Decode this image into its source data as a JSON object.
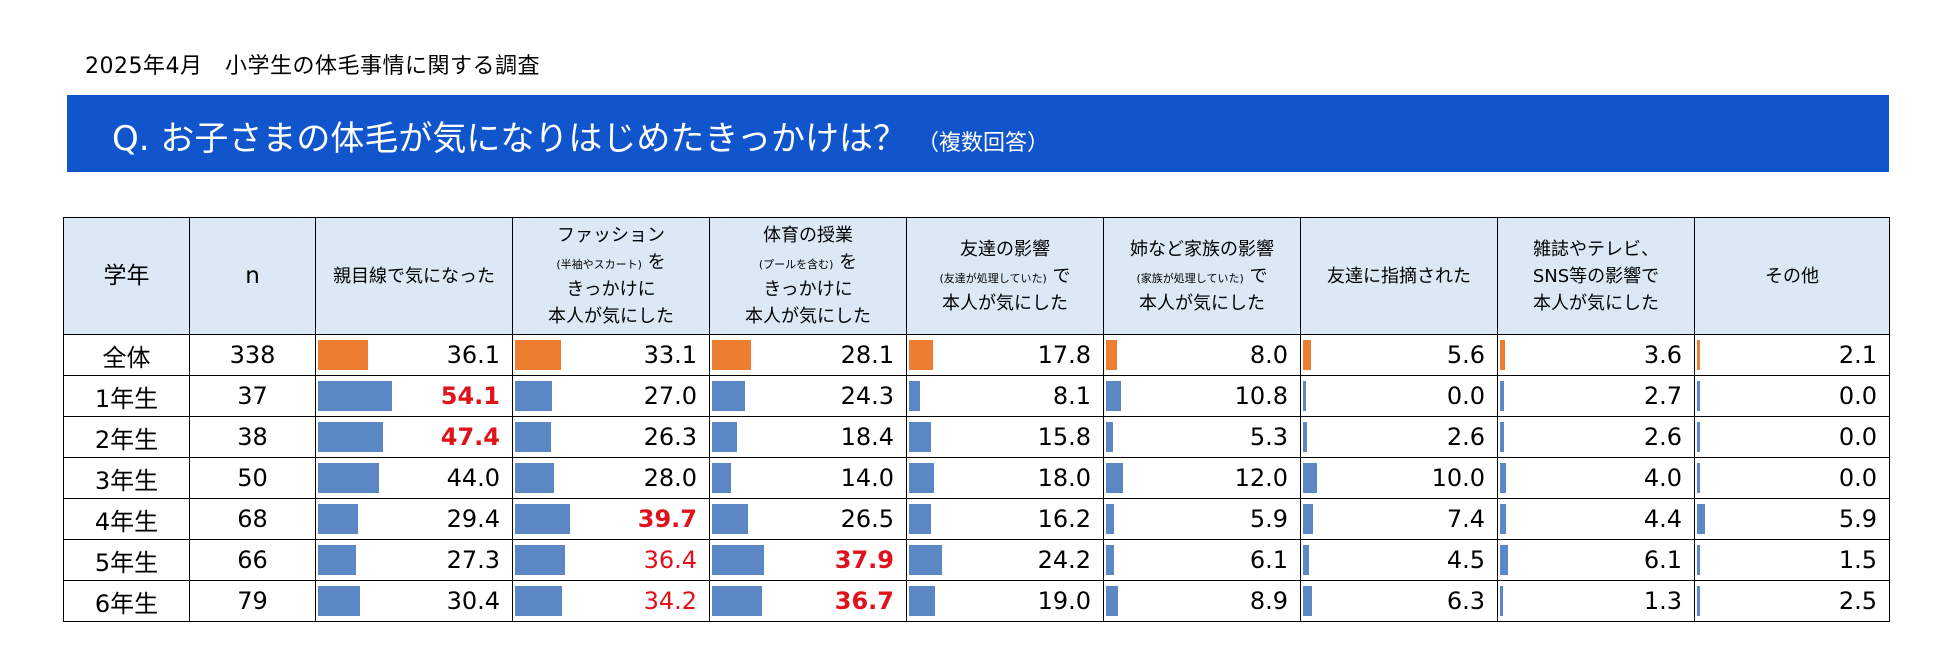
{
  "header": {
    "survey_title": "2025年4月　小学生の体毛事情に関する調査",
    "question": "Q. お子さまの体毛が気になりはじめたきっかけは？",
    "question_note": "（複数回答）"
  },
  "colors": {
    "banner": "#1155cc",
    "header_fill": "#dce9f5",
    "bar_total": "#ed7d31",
    "bar_grade": "#5b87c5",
    "highlight": "#e0121b"
  },
  "chart_data": {
    "type": "table",
    "title": "Q. お子さまの体毛が気になりはじめたきっかけは？（複数回答）",
    "columns": [
      {
        "key": "grade",
        "lines": [
          "学年"
        ]
      },
      {
        "key": "n",
        "lines": [
          "n"
        ]
      },
      {
        "key": "c1",
        "lines": [
          "親目線で気になった"
        ]
      },
      {
        "key": "c2",
        "lines": [
          "ファッション",
          "(半袖やスカート) を",
          "きっかけに",
          "本人が気にした"
        ]
      },
      {
        "key": "c3",
        "lines": [
          "体育の授業",
          "(プールを含む) を",
          "きっかけに",
          "本人が気にした"
        ]
      },
      {
        "key": "c4",
        "lines": [
          "友達の影響",
          "(友達が処理していた) で",
          "本人が気にした"
        ]
      },
      {
        "key": "c5",
        "lines": [
          "姉など家族の影響",
          "(家族が処理していた) で",
          "本人が気にした"
        ]
      },
      {
        "key": "c6",
        "lines": [
          "友達に指摘された"
        ]
      },
      {
        "key": "c7",
        "lines": [
          "雑誌やテレビ、",
          "SNS等の影響で",
          "本人が気にした"
        ]
      },
      {
        "key": "c8",
        "lines": [
          "その他"
        ]
      }
    ],
    "rows": [
      {
        "grade": "全体",
        "n": "338",
        "values": [
          "36.1",
          "33.1",
          "28.1",
          "17.8",
          "8.0",
          "5.6",
          "3.6",
          "2.1"
        ],
        "styles": [
          "",
          "",
          "",
          "",
          "",
          "",
          "",
          ""
        ]
      },
      {
        "grade": "1年生",
        "n": "37",
        "values": [
          "54.1",
          "27.0",
          "24.3",
          "8.1",
          "10.8",
          "0.0",
          "2.7",
          "0.0"
        ],
        "styles": [
          "bold",
          "",
          "",
          "",
          "",
          "",
          "",
          ""
        ]
      },
      {
        "grade": "2年生",
        "n": "38",
        "values": [
          "47.4",
          "26.3",
          "18.4",
          "15.8",
          "5.3",
          "2.6",
          "2.6",
          "0.0"
        ],
        "styles": [
          "bold",
          "",
          "",
          "",
          "",
          "",
          "",
          ""
        ]
      },
      {
        "grade": "3年生",
        "n": "50",
        "values": [
          "44.0",
          "28.0",
          "14.0",
          "18.0",
          "12.0",
          "10.0",
          "4.0",
          "0.0"
        ],
        "styles": [
          "",
          "",
          "",
          "",
          "",
          "",
          "",
          ""
        ]
      },
      {
        "grade": "4年生",
        "n": "68",
        "values": [
          "29.4",
          "39.7",
          "26.5",
          "16.2",
          "5.9",
          "7.4",
          "4.4",
          "5.9"
        ],
        "styles": [
          "",
          "bold",
          "",
          "",
          "",
          "",
          "",
          ""
        ]
      },
      {
        "grade": "5年生",
        "n": "66",
        "values": [
          "27.3",
          "36.4",
          "37.9",
          "24.2",
          "6.1",
          "4.5",
          "6.1",
          "1.5"
        ],
        "styles": [
          "",
          "red",
          "bold",
          "",
          "",
          "",
          "",
          ""
        ]
      },
      {
        "grade": "6年生",
        "n": "79",
        "values": [
          "30.4",
          "34.2",
          "36.7",
          "19.0",
          "8.9",
          "6.3",
          "1.3",
          "2.5"
        ],
        "styles": [
          "",
          "red",
          "bold",
          "",
          "",
          "",
          "",
          ""
        ]
      }
    ],
    "bar_max": 80
  }
}
